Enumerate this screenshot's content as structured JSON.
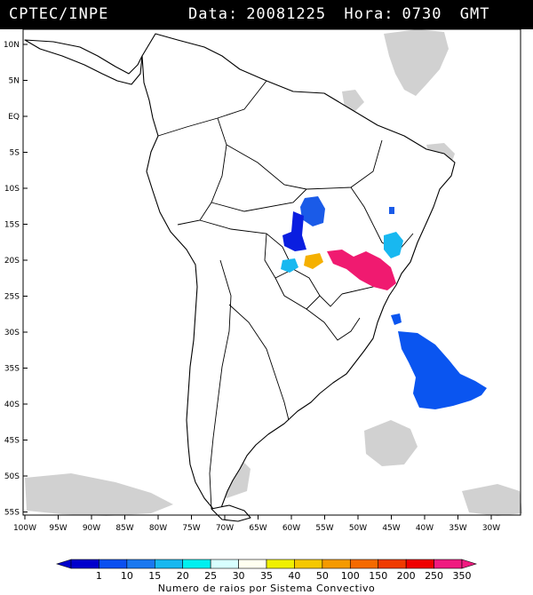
{
  "header": {
    "source": "CPTEC/INPE",
    "date_label": "Data:",
    "date_value": "20081225",
    "hour_label": "Hora:",
    "hour_value": "0730",
    "tz": "GMT"
  },
  "map": {
    "lat_labels": [
      "10N",
      "5N",
      "EQ",
      "5S",
      "10S",
      "15S",
      "20S",
      "25S",
      "30S",
      "35S",
      "40S",
      "45S",
      "50S",
      "55S"
    ],
    "lon_labels": [
      "100W",
      "95W",
      "90W",
      "85W",
      "80W",
      "75W",
      "70W",
      "65W",
      "60W",
      "55W",
      "50W",
      "45W",
      "40W",
      "35W",
      "30W"
    ]
  },
  "storms": [
    {
      "name": "mato-grosso-cluster",
      "color": "#1a5be8"
    },
    {
      "name": "bolivia-west-cluster",
      "color": "#0a1ee0"
    },
    {
      "name": "chaco-cluster",
      "color": "#18b8f0"
    },
    {
      "name": "paraguay-cluster",
      "color": "#f5b000"
    },
    {
      "name": "sao-paulo-cluster",
      "color": "#f01a70"
    },
    {
      "name": "minas-cluster",
      "color": "#18b8f0"
    },
    {
      "name": "atlantic-cluster",
      "color": "#0a55f0"
    }
  ],
  "legend": {
    "title": "Numero de raios por Sistema Convectivo",
    "ticks": [
      "1",
      "10",
      "15",
      "20",
      "25",
      "30",
      "35",
      "40",
      "50",
      "100",
      "150",
      "200",
      "250",
      "350"
    ],
    "colors": [
      "#0000cc",
      "#0a4ff0",
      "#1a78f0",
      "#18b8f0",
      "#00f0f0",
      "#d8ffff",
      "#fffff0",
      "#f0f000",
      "#f5c800",
      "#f59a00",
      "#f56a00",
      "#f03a00",
      "#f00000",
      "#f01a80"
    ]
  }
}
